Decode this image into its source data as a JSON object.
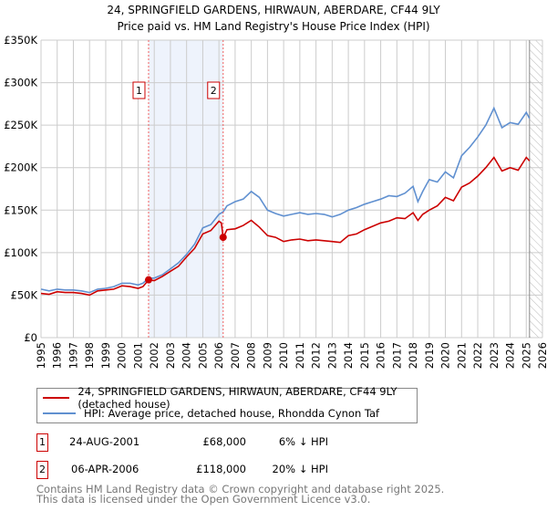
{
  "chart_data": {
    "type": "line",
    "title": "24, SPRINGFIELD GARDENS, HIRWAUN, ABERDARE, CF44 9LY",
    "subtitle": "Price paid vs. HM Land Registry's House Price Index (HPI)",
    "xlim": [
      1995,
      2026
    ],
    "ylim": [
      0,
      350000
    ],
    "x_ticks": [
      "1995",
      "1996",
      "1997",
      "1998",
      "1999",
      "2000",
      "2001",
      "2002",
      "2003",
      "2004",
      "2005",
      "2006",
      "2007",
      "2008",
      "2009",
      "2010",
      "2011",
      "2012",
      "2013",
      "2014",
      "2015",
      "2016",
      "2017",
      "2018",
      "2019",
      "2020",
      "2021",
      "2022",
      "2023",
      "2024",
      "2025",
      "2026"
    ],
    "y_ticks": [
      {
        "v": 0,
        "label": "£0"
      },
      {
        "v": 50000,
        "label": "£50K"
      },
      {
        "v": 100000,
        "label": "£100K"
      },
      {
        "v": 150000,
        "label": "£150K"
      },
      {
        "v": 200000,
        "label": "£200K"
      },
      {
        "v": 250000,
        "label": "£250K"
      },
      {
        "v": 300000,
        "label": "£300K"
      },
      {
        "v": 350000,
        "label": "£350K"
      }
    ],
    "grid": true,
    "shaded_range": [
      2001.65,
      2006.26
    ],
    "forecast_hatch_from": 2025.2,
    "series": [
      {
        "name": "24, SPRINGFIELD GARDENS, HIRWAUN, ABERDARE, CF44 9LY (detached house)",
        "color": "#cc0000",
        "x": [
          1995,
          1995.5,
          1996,
          1996.5,
          1997,
          1997.5,
          1998,
          1998.5,
          1999,
          1999.5,
          2000,
          2000.5,
          2001,
          2001.3,
          2001.65,
          2002,
          2002.5,
          2003,
          2003.5,
          2004,
          2004.5,
          2005,
          2005.5,
          2006,
          2006.15,
          2006.26,
          2006.5,
          2007,
          2007.5,
          2008,
          2008.5,
          2009,
          2009.5,
          2010,
          2010.5,
          2011,
          2011.5,
          2012,
          2012.5,
          2013,
          2013.5,
          2014,
          2014.5,
          2015,
          2015.5,
          2016,
          2016.5,
          2017,
          2017.5,
          2018,
          2018.3,
          2018.6,
          2019,
          2019.5,
          2020,
          2020.5,
          2021,
          2021.5,
          2022,
          2022.5,
          2023,
          2023.5,
          2024,
          2024.5,
          2025,
          2025.2
        ],
        "y": [
          52000,
          51000,
          54000,
          53000,
          53000,
          52000,
          50000,
          55000,
          56000,
          57000,
          61000,
          60000,
          58000,
          60000,
          68000,
          67000,
          72000,
          78000,
          84000,
          95000,
          105000,
          122000,
          126000,
          137000,
          135000,
          118000,
          127000,
          128000,
          132000,
          138000,
          130000,
          120000,
          118000,
          113000,
          115000,
          116000,
          114000,
          115000,
          114000,
          113000,
          112000,
          120000,
          122000,
          127000,
          131000,
          135000,
          137000,
          141000,
          140000,
          147000,
          138000,
          145000,
          150000,
          155000,
          165000,
          161000,
          177000,
          182000,
          190000,
          200000,
          212000,
          196000,
          200000,
          197000,
          212000,
          208000
        ]
      },
      {
        "name": "HPI: Average price, detached house, Rhondda Cynon Taf",
        "color": "#6090d0",
        "x": [
          1995,
          1995.5,
          1996,
          1996.5,
          1997,
          1997.5,
          1998,
          1998.5,
          1999,
          1999.5,
          2000,
          2000.5,
          2001,
          2001.3,
          2001.65,
          2002,
          2002.5,
          2003,
          2003.5,
          2004,
          2004.5,
          2005,
          2005.5,
          2006,
          2006.26,
          2006.5,
          2007,
          2007.5,
          2008,
          2008.5,
          2009,
          2009.5,
          2010,
          2010.5,
          2011,
          2011.5,
          2012,
          2012.5,
          2013,
          2013.5,
          2014,
          2014.5,
          2015,
          2015.5,
          2016,
          2016.5,
          2017,
          2017.5,
          2018,
          2018.3,
          2018.6,
          2019,
          2019.5,
          2020,
          2020.5,
          2021,
          2021.5,
          2022,
          2022.5,
          2023,
          2023.5,
          2024,
          2024.5,
          2025,
          2025.2
        ],
        "y": [
          57000,
          55000,
          57000,
          56000,
          56000,
          55000,
          53000,
          57000,
          58000,
          60000,
          64000,
          64000,
          62000,
          64000,
          70000,
          70000,
          74000,
          81000,
          88000,
          98000,
          110000,
          129000,
          133000,
          145000,
          148000,
          155000,
          160000,
          163000,
          172000,
          165000,
          150000,
          146000,
          143000,
          145000,
          147000,
          145000,
          146000,
          145000,
          142000,
          145000,
          150000,
          153000,
          157000,
          160000,
          163000,
          167000,
          166000,
          170000,
          178000,
          160000,
          172000,
          186000,
          183000,
          195000,
          188000,
          214000,
          224000,
          236000,
          250000,
          270000,
          247000,
          253000,
          251000,
          265000,
          258000
        ]
      }
    ],
    "sales": [
      {
        "label": "1",
        "x": 2001.65,
        "y": 68000
      },
      {
        "label": "2",
        "x": 2006.26,
        "y": 118000
      }
    ]
  },
  "legend": {
    "items": [
      {
        "label": "24, SPRINGFIELD GARDENS, HIRWAUN, ABERDARE, CF44 9LY (detached house)",
        "color": "#cc0000"
      },
      {
        "label": "HPI: Average price, detached house, Rhondda Cynon Taf",
        "color": "#6090d0"
      }
    ]
  },
  "transactions": [
    {
      "num": "1",
      "date": "24-AUG-2001",
      "price": "£68,000",
      "hpi": "6% ↓ HPI"
    },
    {
      "num": "2",
      "date": "06-APR-2006",
      "price": "£118,000",
      "hpi": "20% ↓ HPI"
    }
  ],
  "footer": {
    "line1": "Contains HM Land Registry data © Crown copyright and database right 2025.",
    "line2": "This data is licensed under the Open Government Licence v3.0."
  }
}
